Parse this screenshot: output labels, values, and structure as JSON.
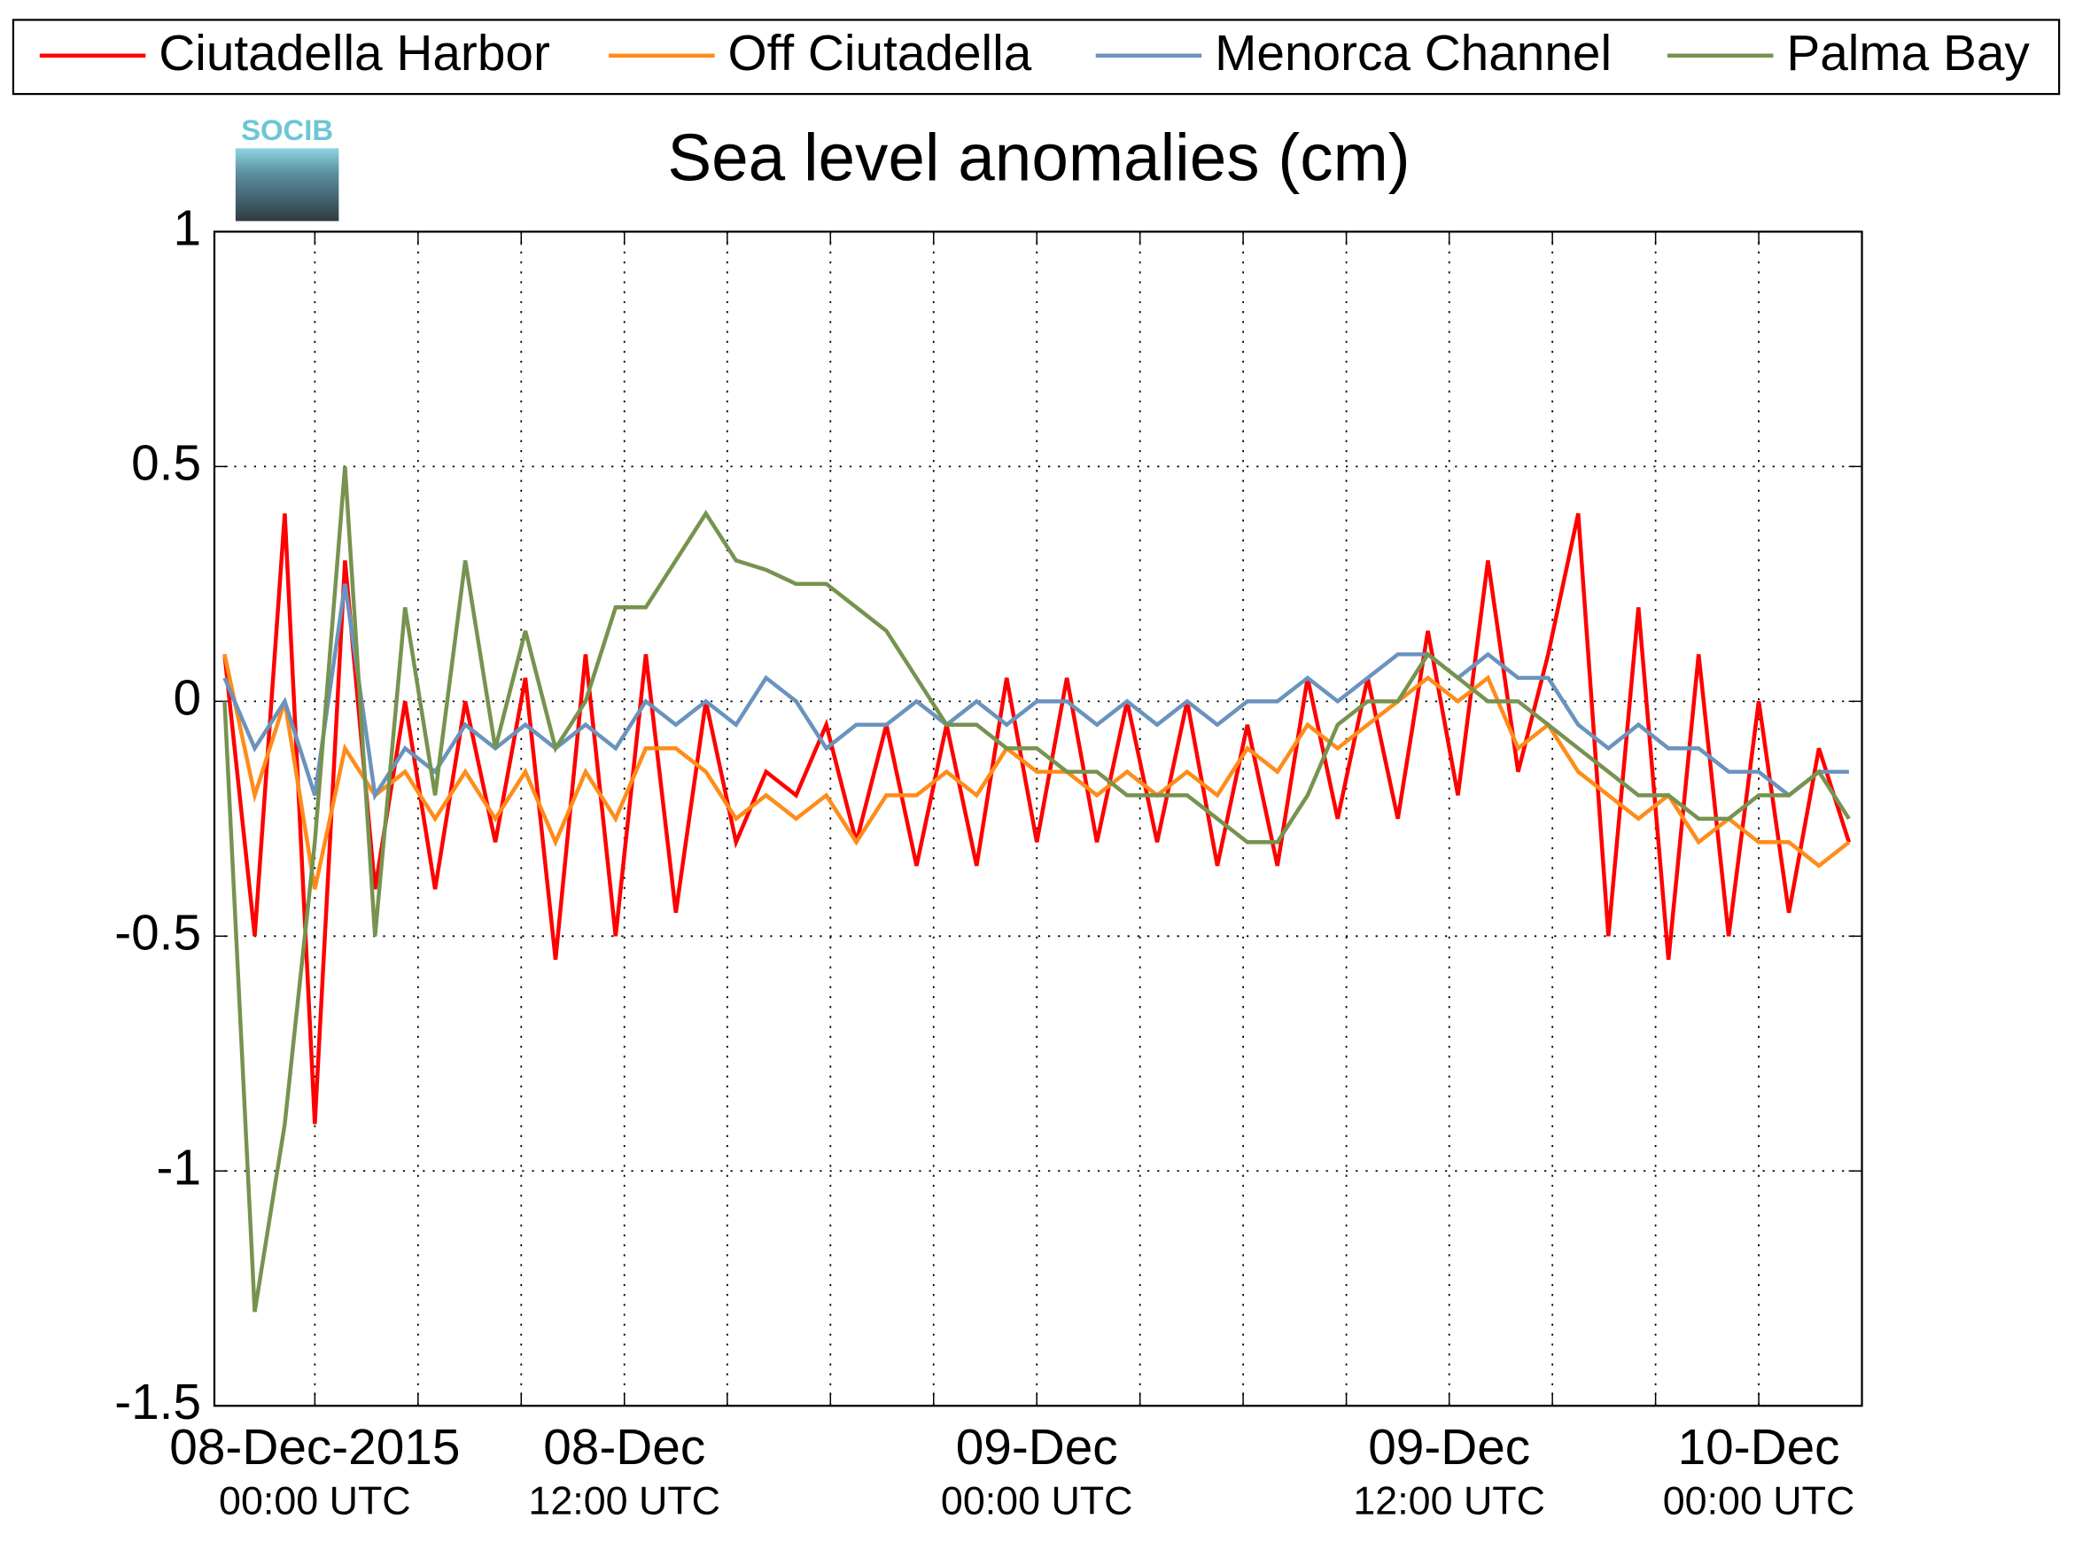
{
  "chart_data": {
    "type": "line",
    "title": "Sea level anomalies (cm)",
    "logo_text": "SOCIB",
    "x": [
      -3,
      -2,
      -1,
      0,
      1,
      2,
      3,
      4,
      5,
      6,
      7,
      8,
      9,
      10,
      11,
      12,
      13,
      14,
      15,
      16,
      17,
      18,
      19,
      20,
      21,
      22,
      23,
      24,
      25,
      26,
      27,
      28,
      29,
      30,
      31,
      32,
      33,
      34,
      35,
      36,
      37,
      38,
      39,
      40,
      41,
      42,
      43,
      44,
      45,
      46,
      47,
      48,
      49,
      50,
      51
    ],
    "series": [
      {
        "name": "Ciutadella Harbor",
        "color": "#ff0000",
        "values": [
          0.1,
          -0.5,
          0.4,
          -0.9,
          0.3,
          -0.4,
          0.0,
          -0.4,
          0.0,
          -0.3,
          0.05,
          -0.55,
          0.1,
          -0.5,
          0.1,
          -0.45,
          0.0,
          -0.3,
          -0.15,
          -0.2,
          -0.05,
          -0.3,
          -0.05,
          -0.35,
          -0.05,
          -0.35,
          0.05,
          -0.3,
          0.05,
          -0.3,
          0.0,
          -0.3,
          0.0,
          -0.35,
          -0.05,
          -0.35,
          0.05,
          -0.25,
          0.05,
          -0.25,
          0.15,
          -0.2,
          0.3,
          -0.15,
          0.1,
          0.4,
          -0.5,
          0.2,
          -0.55,
          0.1,
          -0.5,
          0.0,
          -0.45,
          -0.1,
          -0.3
        ]
      },
      {
        "name": "Off Ciutadella",
        "color": "#ff8c1a",
        "values": [
          0.1,
          -0.2,
          0.0,
          -0.4,
          -0.1,
          -0.2,
          -0.15,
          -0.25,
          -0.15,
          -0.25,
          -0.15,
          -0.3,
          -0.15,
          -0.25,
          -0.1,
          -0.1,
          -0.15,
          -0.25,
          -0.2,
          -0.25,
          -0.2,
          -0.3,
          -0.2,
          -0.2,
          -0.15,
          -0.2,
          -0.1,
          -0.15,
          -0.15,
          -0.2,
          -0.15,
          -0.2,
          -0.15,
          -0.2,
          -0.1,
          -0.15,
          -0.05,
          -0.1,
          -0.05,
          0.0,
          0.05,
          0.0,
          0.05,
          -0.1,
          -0.05,
          -0.15,
          -0.2,
          -0.25,
          -0.2,
          -0.3,
          -0.25,
          -0.3,
          -0.3,
          -0.35,
          -0.3
        ]
      },
      {
        "name": "Menorca Channel",
        "color": "#6a93bd",
        "values": [
          0.05,
          -0.1,
          0.0,
          -0.2,
          0.25,
          -0.2,
          -0.1,
          -0.15,
          -0.05,
          -0.1,
          -0.05,
          -0.1,
          -0.05,
          -0.1,
          0.0,
          -0.05,
          0.0,
          -0.05,
          0.05,
          0.0,
          -0.1,
          -0.05,
          -0.05,
          0.0,
          -0.05,
          0.0,
          -0.05,
          0.0,
          0.0,
          -0.05,
          0.0,
          -0.05,
          0.0,
          -0.05,
          0.0,
          0.0,
          0.05,
          0.0,
          0.05,
          0.1,
          0.1,
          0.05,
          0.1,
          0.05,
          0.05,
          -0.05,
          -0.1,
          -0.05,
          -0.1,
          -0.1,
          -0.15,
          -0.15,
          -0.2,
          -0.15,
          -0.15
        ]
      },
      {
        "name": "Palma Bay",
        "color": "#76934f",
        "values": [
          0,
          -1.3,
          -0.9,
          -0.3,
          0.5,
          -0.5,
          0.2,
          -0.2,
          0.3,
          -0.1,
          0.15,
          -0.1,
          0,
          0.2,
          0.2,
          0.3,
          0.4,
          0.3,
          0.28,
          0.25,
          0.25,
          0.2,
          0.15,
          0.05,
          -0.05,
          -0.05,
          -0.1,
          -0.1,
          -0.15,
          -0.15,
          -0.2,
          -0.2,
          -0.2,
          -0.25,
          -0.3,
          -0.3,
          -0.2,
          -0.05,
          0,
          0,
          0.1,
          0.05,
          0,
          0,
          -0.05,
          -0.1,
          -0.15,
          -0.2,
          -0.2,
          -0.25,
          -0.25,
          -0.2,
          -0.2,
          -0.15,
          -0.25
        ]
      }
    ],
    "xlim": [
      -3.34,
      51.43
    ],
    "xticks": [
      {
        "value": 0,
        "label": [
          "08-Dec-2015",
          "00:00 UTC"
        ]
      },
      3.43,
      6.86,
      {
        "value": 10.29,
        "label": [
          "08-Dec",
          "12:00 UTC"
        ]
      },
      13.71,
      17.14,
      20.57,
      {
        "value": 24,
        "label": [
          "09-Dec",
          "00:00 UTC"
        ]
      },
      27.43,
      30.86,
      34.29,
      {
        "value": 37.71,
        "label": [
          "09-Dec",
          "12:00 UTC"
        ]
      },
      41.14,
      44.57,
      {
        "value": 48,
        "label": [
          "10-Dec",
          "00:00 UTC"
        ]
      }
    ],
    "ylim": [
      -1.5,
      1
    ],
    "yticks": [
      -1.5,
      -1,
      -0.5,
      0,
      0.5,
      1
    ],
    "grid": true,
    "legend": "top"
  }
}
